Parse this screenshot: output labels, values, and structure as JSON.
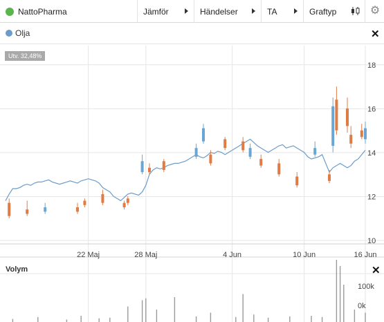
{
  "toolbar": {
    "instrument": "NattoPharma",
    "compare": "Jämför",
    "events": "Händelser",
    "ta": "TA",
    "graph_type": "Graftyp",
    "gear_glyph": "⚙"
  },
  "legend": {
    "series_label": "Olja",
    "close_glyph": "✕"
  },
  "badge": "Utv. 32,48%",
  "volume": {
    "title": "Volym",
    "close_glyph": "✕",
    "tick_labels": [
      "100k",
      "0k"
    ]
  },
  "colors": {
    "line": "#6a9ccc",
    "up": "#6aa6d3",
    "down": "#e07b45",
    "grid": "#e6e6e6",
    "volume": "#9a9a9a",
    "instrument_dot": "#58b64a"
  },
  "chart_data": {
    "type": "line",
    "x_tick_labels": [
      "22 Maj",
      "28 Maj",
      "4 Jun",
      "10 Jun",
      "16 Jun"
    ],
    "y_tick_labels": [
      "18",
      "16",
      "14",
      "12",
      "10"
    ],
    "ylim": [
      10,
      19
    ],
    "line_series": [
      12.0,
      12.3,
      12.55,
      12.55,
      12.6,
      12.7,
      12.75,
      12.7,
      12.8,
      12.85,
      12.85,
      12.9,
      12.95,
      12.85,
      12.8,
      12.75,
      12.8,
      12.85,
      12.9,
      12.85,
      12.8,
      12.9,
      12.95,
      13.0,
      12.95,
      12.9,
      12.8,
      12.6,
      12.5,
      12.4,
      12.2,
      12.1,
      12.0,
      12.15,
      12.3,
      12.35,
      12.3,
      12.25,
      12.4,
      12.7,
      13.2,
      13.4,
      13.5,
      13.45,
      13.5,
      13.6,
      13.65,
      13.7,
      13.7,
      13.75,
      13.8,
      13.9,
      14.0,
      14.1,
      14.0,
      13.95,
      14.05,
      14.2,
      14.15,
      14.25,
      14.2,
      14.1,
      14.2,
      14.3,
      14.4,
      14.5,
      14.6,
      14.7,
      14.8,
      14.65,
      14.5,
      14.4,
      14.3,
      14.2,
      14.3,
      14.4,
      14.5,
      14.55,
      14.4,
      14.45,
      14.5,
      14.4,
      14.3,
      14.2,
      14.0,
      13.9,
      13.95,
      14.0,
      14.1,
      13.7,
      13.3,
      13.5,
      13.6,
      13.7,
      13.6,
      13.5,
      13.6,
      13.8,
      13.9,
      14.1,
      14.3
    ],
    "candles": [
      [
        1,
        11.9,
        11.3,
        12.1,
        11.2
      ],
      [
        6,
        11.6,
        11.4,
        12.0,
        11.3
      ],
      [
        11,
        11.5,
        11.7,
        11.9,
        11.4
      ],
      [
        20,
        11.7,
        11.5,
        11.9,
        11.4
      ],
      [
        22,
        12.0,
        11.8,
        12.1,
        11.7
      ],
      [
        27,
        12.3,
        11.9,
        12.5,
        11.8
      ],
      [
        33,
        11.9,
        11.7,
        12.0,
        11.6
      ],
      [
        34,
        12.1,
        11.9,
        12.2,
        11.8
      ],
      [
        38,
        13.3,
        13.8,
        14.1,
        13.2
      ],
      [
        40,
        13.5,
        13.3,
        13.7,
        13.2
      ],
      [
        44,
        13.8,
        13.4,
        13.9,
        13.3
      ],
      [
        53,
        14.0,
        14.4,
        14.6,
        13.9
      ],
      [
        55,
        14.7,
        15.3,
        15.5,
        14.6
      ],
      [
        57,
        14.1,
        13.7,
        14.3,
        13.6
      ],
      [
        61,
        14.8,
        14.4,
        14.9,
        14.3
      ],
      [
        66,
        14.7,
        14.3,
        14.9,
        14.2
      ],
      [
        68,
        14.0,
        14.4,
        14.6,
        13.9
      ],
      [
        71,
        13.9,
        13.6,
        14.1,
        13.5
      ],
      [
        76,
        13.7,
        13.2,
        13.9,
        13.1
      ],
      [
        81,
        13.1,
        12.7,
        13.3,
        12.6
      ],
      [
        86,
        14.1,
        14.4,
        14.7,
        14.0
      ],
      [
        90,
        13.2,
        12.9,
        13.4,
        12.8
      ],
      [
        91,
        14.5,
        16.3,
        16.7,
        14.2
      ],
      [
        92,
        16.6,
        15.2,
        17.2,
        15.0
      ],
      [
        95,
        16.2,
        15.4,
        16.7,
        15.1
      ],
      [
        96,
        15.0,
        14.6,
        15.4,
        14.4
      ],
      [
        99,
        15.2,
        14.9,
        15.5,
        14.8
      ],
      [
        100,
        14.8,
        15.3,
        15.6,
        14.6
      ]
    ],
    "volume_spikes": [
      [
        2,
        5
      ],
      [
        9,
        8
      ],
      [
        17,
        4
      ],
      [
        21,
        10
      ],
      [
        26,
        6
      ],
      [
        29,
        7
      ],
      [
        34,
        25
      ],
      [
        38,
        35
      ],
      [
        39,
        38
      ],
      [
        42,
        20
      ],
      [
        47,
        40
      ],
      [
        53,
        9
      ],
      [
        57,
        15
      ],
      [
        64,
        8
      ],
      [
        66,
        45
      ],
      [
        69,
        12
      ],
      [
        73,
        7
      ],
      [
        79,
        9
      ],
      [
        85,
        10
      ],
      [
        88,
        8
      ],
      [
        92,
        100
      ],
      [
        93,
        90
      ],
      [
        94,
        60
      ],
      [
        97,
        20
      ],
      [
        100,
        15
      ]
    ]
  }
}
